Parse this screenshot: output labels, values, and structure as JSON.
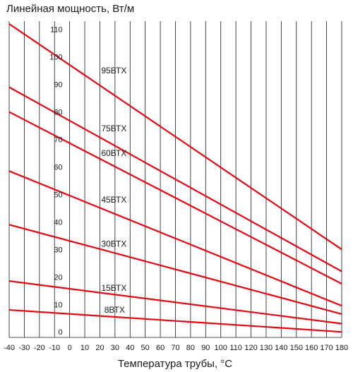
{
  "chart_data": {
    "type": "line",
    "title": "",
    "ylabel": "Линейная мощность, Вт/м",
    "xlabel": "Температура трубы, °С",
    "xlim": [
      -40,
      180
    ],
    "ylim": [
      -2,
      113
    ],
    "x_ticks": [
      -40,
      -30,
      -20,
      -10,
      0,
      10,
      20,
      30,
      40,
      50,
      60,
      70,
      80,
      90,
      100,
      110,
      120,
      130,
      140,
      150,
      160,
      170,
      180
    ],
    "y_ticks": [
      0,
      10,
      20,
      30,
      40,
      50,
      60,
      70,
      80,
      90,
      100,
      110
    ],
    "grid": true,
    "legend": "none",
    "series_color": "#e30613",
    "series": [
      {
        "name": "95ВТХ",
        "x": [
          -40,
          180
        ],
        "values": [
          112,
          30
        ],
        "label_at": [
          20,
          94
        ]
      },
      {
        "name": "75ВТХ",
        "x": [
          -40,
          180
        ],
        "values": [
          89,
          22
        ],
        "label_at": [
          20,
          73
        ]
      },
      {
        "name": "60ВТХ",
        "x": [
          -40,
          180
        ],
        "values": [
          80,
          17.5
        ],
        "label_at": [
          20,
          64
        ]
      },
      {
        "name": "45ВТХ",
        "x": [
          -40,
          180
        ],
        "values": [
          58.5,
          9.5
        ],
        "label_at": [
          20,
          47
        ]
      },
      {
        "name": "30ВТХ",
        "x": [
          -40,
          180
        ],
        "values": [
          39,
          6.5
        ],
        "label_at": [
          20,
          31
        ]
      },
      {
        "name": "15ВТХ",
        "x": [
          -40,
          180
        ],
        "values": [
          18.5,
          3
        ],
        "label_at": [
          20,
          15
        ]
      },
      {
        "name": "8ВТХ",
        "x": [
          -40,
          180
        ],
        "values": [
          8,
          0
        ],
        "label_at": [
          22,
          7
        ]
      }
    ]
  }
}
